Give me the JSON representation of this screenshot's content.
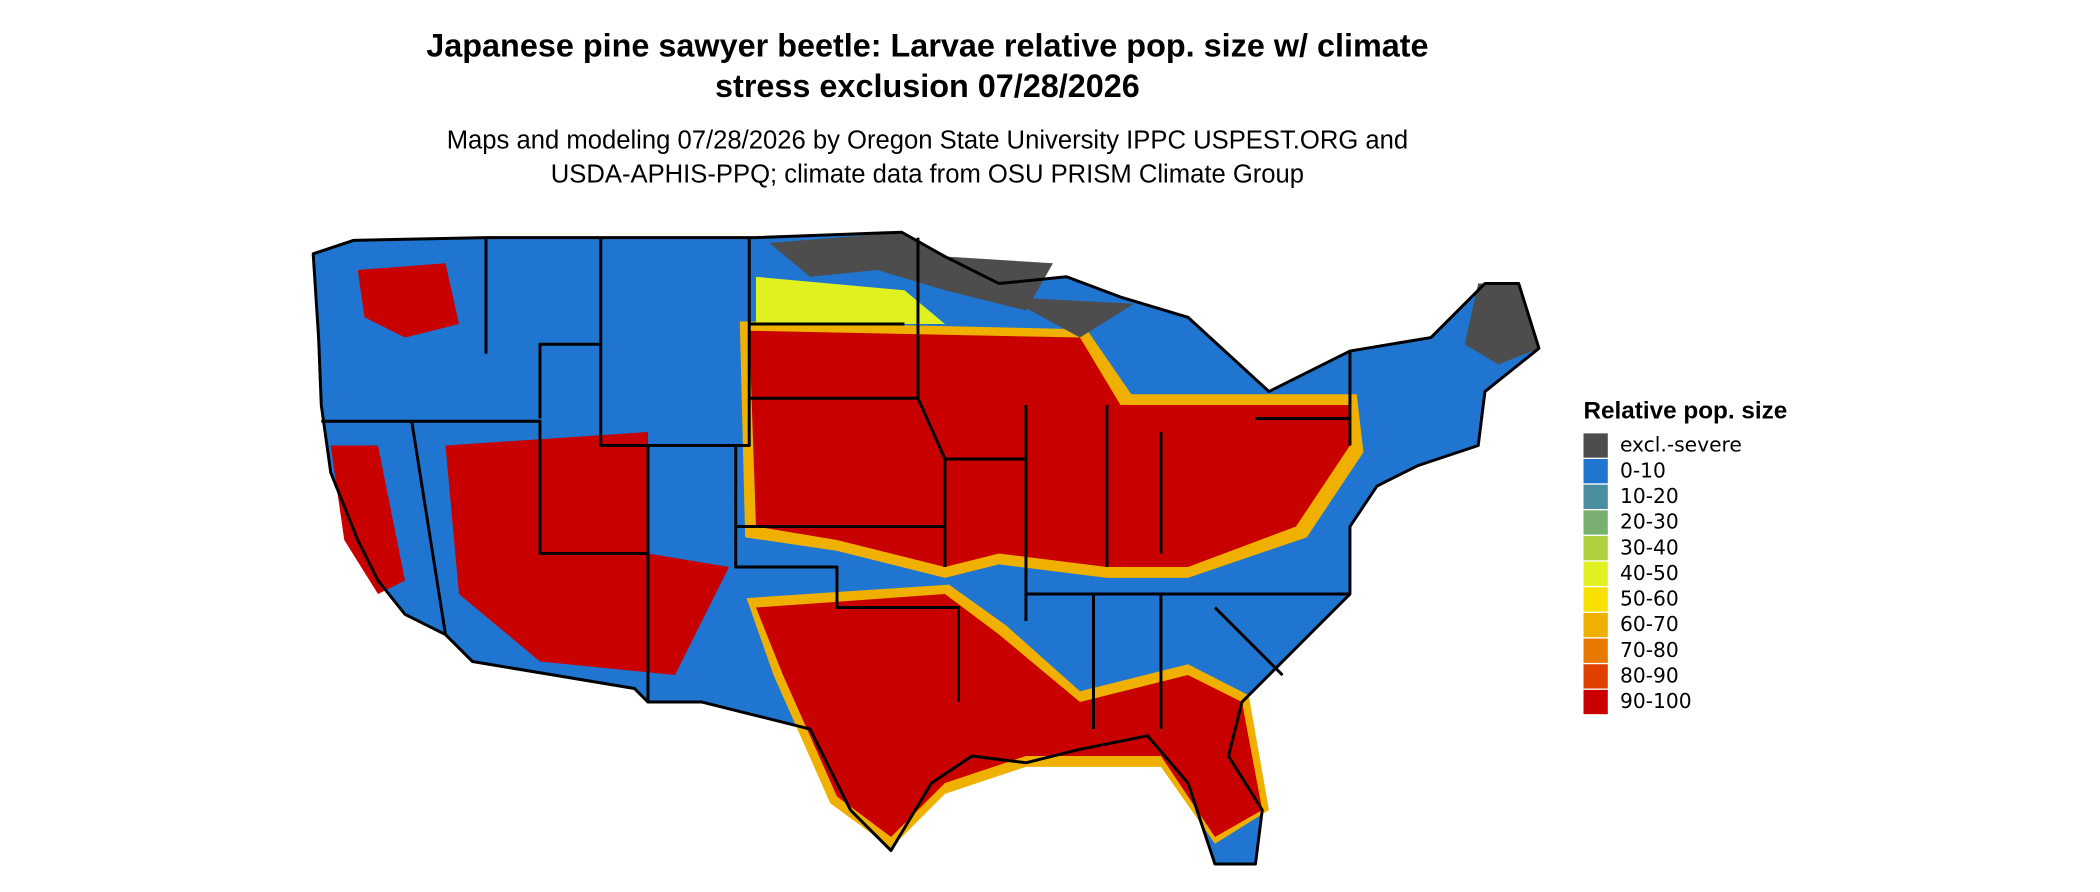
{
  "title": [
    "Japanese pine sawyer beetle: Larvae relative pop. size w/ climate",
    "stress exclusion 07/28/2026"
  ],
  "subtitle": [
    "Maps and modeling 07/28/2026 by Oregon State University IPPC USPEST.ORG and",
    "USDA-APHIS-PPQ; climate data from OSU PRISM Climate Group"
  ],
  "legend": {
    "title": "Relative pop. size",
    "items": [
      {
        "label": "excl.-severe",
        "color": "#4d4d4d"
      },
      {
        "label": "0-10",
        "color": "#1f75d0"
      },
      {
        "label": "10-20",
        "color": "#4a8fa0"
      },
      {
        "label": "20-30",
        "color": "#78b070"
      },
      {
        "label": "30-40",
        "color": "#b0d040"
      },
      {
        "label": "40-50",
        "color": "#e0f020"
      },
      {
        "label": "50-60",
        "color": "#f8e000"
      },
      {
        "label": "60-70",
        "color": "#f0b000"
      },
      {
        "label": "70-80",
        "color": "#e87800"
      },
      {
        "label": "80-90",
        "color": "#e04000"
      },
      {
        "label": "90-100",
        "color": "#c80000"
      }
    ]
  }
}
